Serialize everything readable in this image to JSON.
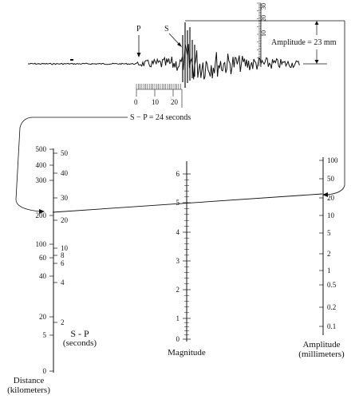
{
  "seismogram": {
    "p_label": "P",
    "s_label": "S",
    "amplitude_label": "Amplitude = 23 mm",
    "time_ticks": [
      "0",
      "10",
      "20"
    ],
    "ruler_ticks": [
      "10",
      "20",
      "30"
    ],
    "sp_label": "S − P = 24 seconds"
  },
  "distance_scale": {
    "ticks": [
      "500",
      "400",
      "300",
      "200",
      "100",
      "60",
      "40",
      "20",
      "5",
      "0"
    ],
    "label_line1": "Distance",
    "label_line2": "(kilometers)"
  },
  "sp_scale": {
    "ticks": [
      "50",
      "40",
      "30",
      "20",
      "10",
      "8",
      "6",
      "4",
      "2"
    ],
    "label_line1": "S - P",
    "label_line2": "(seconds)"
  },
  "magnitude_scale": {
    "ticks": [
      "6",
      "5",
      "4",
      "3",
      "2",
      "1",
      "0"
    ],
    "label": "Magnitude"
  },
  "amplitude_scale": {
    "ticks": [
      "100",
      "50",
      "20",
      "10",
      "5",
      "2",
      "1",
      "0.5",
      "0.2",
      "0.1"
    ],
    "label_line1": "Amplitude",
    "label_line2": "(millimeters)"
  }
}
